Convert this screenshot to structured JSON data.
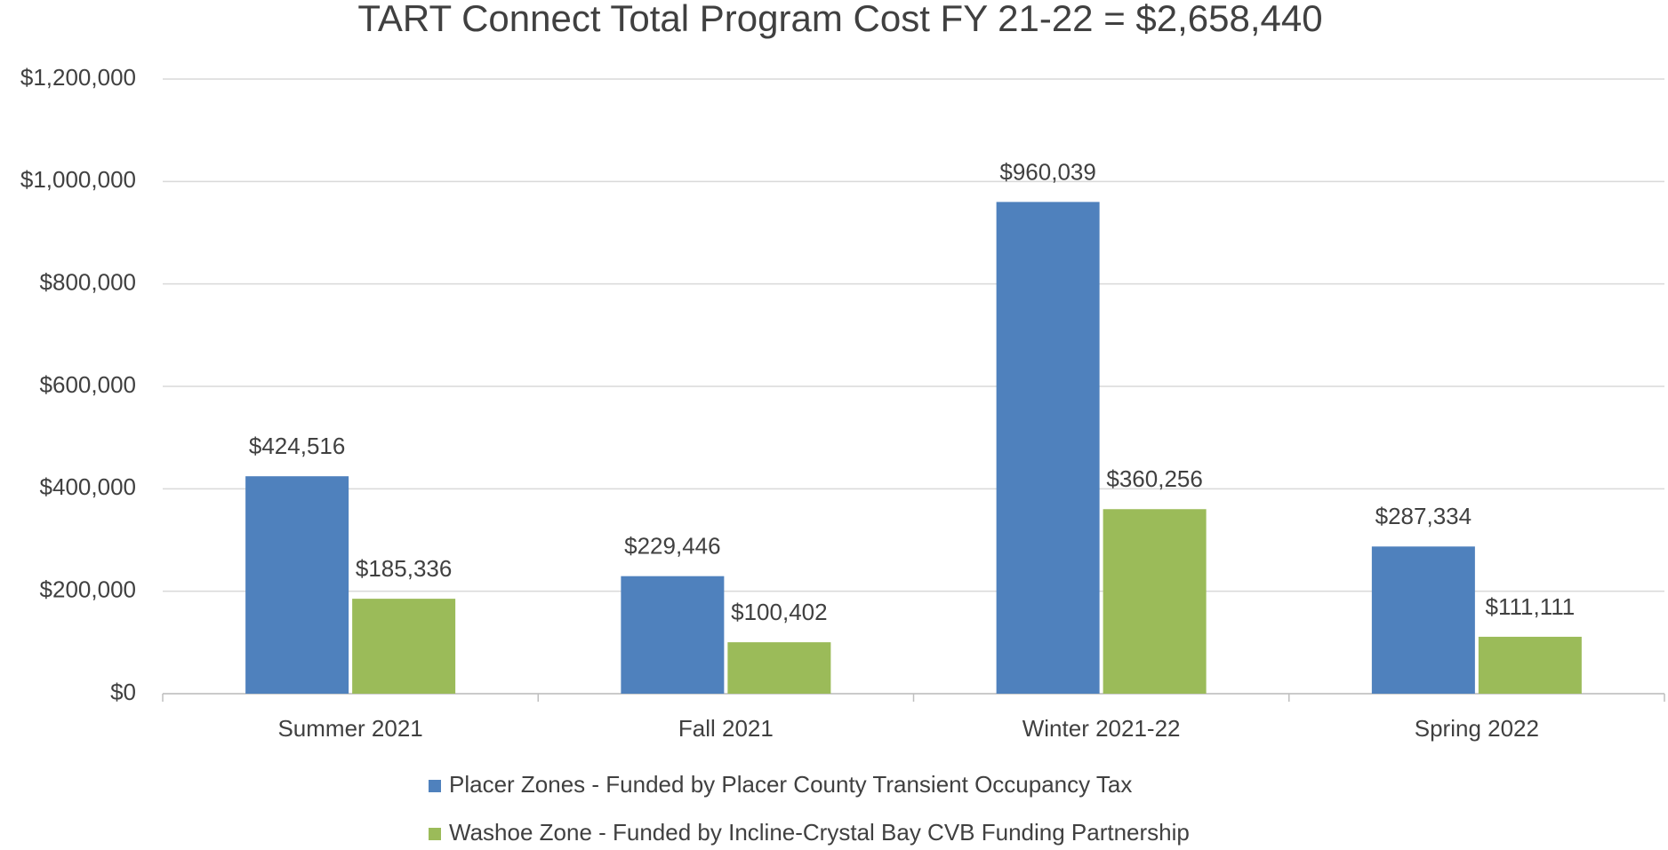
{
  "chart_data": {
    "type": "bar",
    "title": "TART Connect Total Program Cost FY 21-22 = $2,658,440",
    "categories": [
      "Summer 2021",
      "Fall 2021",
      "Winter 2021-22",
      "Spring 2022"
    ],
    "series": [
      {
        "name": "Placer Zones - Funded by Placer County Transient Occupancy Tax",
        "color": "#4f81bd",
        "values": [
          424516,
          229446,
          960039,
          287334
        ],
        "value_labels": [
          "$424,516",
          "$229,446",
          "$960,039",
          "$287,334"
        ]
      },
      {
        "name": "Washoe Zone - Funded by Incline-Crystal Bay CVB Funding Partnership",
        "color": "#9bbb59",
        "values": [
          185336,
          100402,
          360256,
          111111
        ],
        "value_labels": [
          "$185,336",
          "$100,402",
          "$360,256",
          "$111,111"
        ]
      }
    ],
    "ylim": [
      0,
      1200000
    ],
    "yticks": [
      {
        "value": 0,
        "label": "$0"
      },
      {
        "value": 200000,
        "label": "$200,000"
      },
      {
        "value": 400000,
        "label": "$400,000"
      },
      {
        "value": 600000,
        "label": "$600,000"
      },
      {
        "value": 800000,
        "label": "$800,000"
      },
      {
        "value": 1000000,
        "label": "$1,000,000"
      },
      {
        "value": 1200000,
        "label": "$1,200,000"
      }
    ],
    "grid": true,
    "legend": "bottom"
  }
}
